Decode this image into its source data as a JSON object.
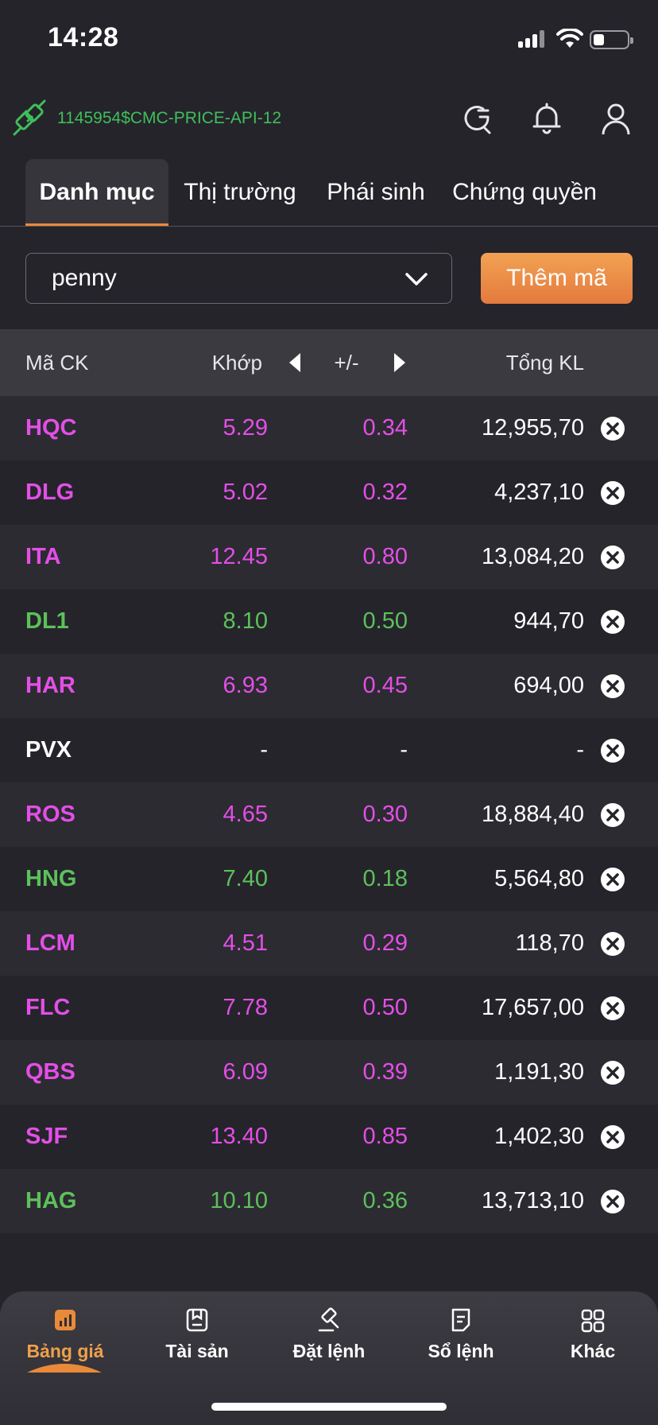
{
  "status_bar": {
    "time": "14:28"
  },
  "header": {
    "account_id": "1145954$CMC-PRICE-API-12",
    "icons": [
      "plug-icon",
      "refresh-icon",
      "bell-icon",
      "user-icon"
    ]
  },
  "tabs": [
    {
      "label": "Danh mục",
      "active": true
    },
    {
      "label": "Thị trường",
      "active": false
    },
    {
      "label": "Phái sinh",
      "active": false
    },
    {
      "label": "Chứng quyền",
      "active": false
    }
  ],
  "watchlist": {
    "selected": "penny",
    "add_button_label": "Thêm mã"
  },
  "table": {
    "columns": {
      "symbol": "Mã CK",
      "match": "Khớp",
      "change": "+/-",
      "total": "Tổng KL"
    },
    "rows": [
      {
        "symbol": "HQC",
        "match": "5.29",
        "change": "0.34",
        "total": "12,955,70",
        "color": "#e34fe6"
      },
      {
        "symbol": "DLG",
        "match": "5.02",
        "change": "0.32",
        "total": "4,237,10",
        "color": "#e34fe6"
      },
      {
        "symbol": "ITA",
        "match": "12.45",
        "change": "0.80",
        "total": "13,084,20",
        "color": "#e34fe6"
      },
      {
        "symbol": "DL1",
        "match": "8.10",
        "change": "0.50",
        "total": "944,70",
        "color": "#5dc05b"
      },
      {
        "symbol": "HAR",
        "match": "6.93",
        "change": "0.45",
        "total": "694,00",
        "color": "#e34fe6"
      },
      {
        "symbol": "PVX",
        "match": "-",
        "change": "-",
        "total": "-",
        "color": "#ffffff"
      },
      {
        "symbol": "ROS",
        "match": "4.65",
        "change": "0.30",
        "total": "18,884,40",
        "color": "#e34fe6"
      },
      {
        "symbol": "HNG",
        "match": "7.40",
        "change": "0.18",
        "total": "5,564,80",
        "color": "#5dc05b"
      },
      {
        "symbol": "LCM",
        "match": "4.51",
        "change": "0.29",
        "total": "118,70",
        "color": "#e34fe6"
      },
      {
        "symbol": "FLC",
        "match": "7.78",
        "change": "0.50",
        "total": "17,657,00",
        "color": "#e34fe6"
      },
      {
        "symbol": "QBS",
        "match": "6.09",
        "change": "0.39",
        "total": "1,191,30",
        "color": "#e34fe6"
      },
      {
        "symbol": "SJF",
        "match": "13.40",
        "change": "0.85",
        "total": "1,402,30",
        "color": "#e34fe6"
      },
      {
        "symbol": "HAG",
        "match": "10.10",
        "change": "0.36",
        "total": "13,713,10",
        "color": "#5dc05b"
      }
    ]
  },
  "bottom_nav": [
    {
      "label": "Bảng giá",
      "icon": "price-board-icon",
      "active": true
    },
    {
      "label": "Tài sản",
      "icon": "assets-icon",
      "active": false
    },
    {
      "label": "Đặt lệnh",
      "icon": "gavel-icon",
      "active": false
    },
    {
      "label": "Sổ lệnh",
      "icon": "order-book-icon",
      "active": false
    },
    {
      "label": "Khác",
      "icon": "grid-icon",
      "active": false
    }
  ],
  "colors": {
    "accent": "#e98a3a",
    "up": "#e34fe6",
    "green": "#5dc05b",
    "background": "#25242b"
  }
}
